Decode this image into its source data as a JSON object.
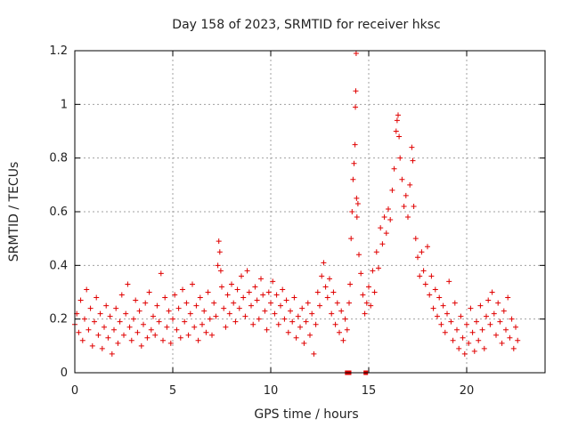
{
  "chart_data": {
    "type": "scatter",
    "title": "Day 158 of 2023, SRMTID for receiver hksc",
    "xlabel": "GPS time / hours",
    "ylabel": "SRMTID / TECUs",
    "xlim": [
      0,
      24
    ],
    "ylim": [
      0,
      1.2
    ],
    "xticks": [
      0,
      5,
      10,
      15,
      20
    ],
    "xtick_labels": [
      "0",
      "5",
      "10",
      "15",
      "20"
    ],
    "yticks": [
      0,
      0.2,
      0.4,
      0.6,
      0.8,
      1.0,
      1.2
    ],
    "ytick_labels": [
      "0",
      "0.2",
      "0.4",
      "0.6",
      "0.8",
      "1",
      "1.2"
    ],
    "grid": true,
    "marker": "+",
    "color": "#e00000",
    "data_gap_markers": [
      {
        "x": 13.9,
        "y": 0.0
      },
      {
        "x": 14.0,
        "y": 0.0
      },
      {
        "x": 14.85,
        "y": 0.0
      }
    ],
    "series": [
      {
        "name": "SRMTID",
        "points": [
          [
            0.0,
            0.18
          ],
          [
            0.1,
            0.22
          ],
          [
            0.2,
            0.15
          ],
          [
            0.3,
            0.27
          ],
          [
            0.4,
            0.12
          ],
          [
            0.5,
            0.2
          ],
          [
            0.6,
            0.31
          ],
          [
            0.7,
            0.16
          ],
          [
            0.8,
            0.24
          ],
          [
            0.9,
            0.1
          ],
          [
            1.0,
            0.19
          ],
          [
            1.1,
            0.28
          ],
          [
            1.2,
            0.14
          ],
          [
            1.3,
            0.22
          ],
          [
            1.4,
            0.09
          ],
          [
            1.5,
            0.17
          ],
          [
            1.6,
            0.25
          ],
          [
            1.7,
            0.13
          ],
          [
            1.8,
            0.21
          ],
          [
            1.9,
            0.07
          ],
          [
            2.0,
            0.16
          ],
          [
            2.1,
            0.24
          ],
          [
            2.2,
            0.11
          ],
          [
            2.3,
            0.19
          ],
          [
            2.4,
            0.29
          ],
          [
            2.5,
            0.14
          ],
          [
            2.6,
            0.22
          ],
          [
            2.7,
            0.33
          ],
          [
            2.8,
            0.17
          ],
          [
            2.9,
            0.12
          ],
          [
            3.0,
            0.2
          ],
          [
            3.1,
            0.27
          ],
          [
            3.2,
            0.15
          ],
          [
            3.3,
            0.23
          ],
          [
            3.4,
            0.1
          ],
          [
            3.5,
            0.18
          ],
          [
            3.6,
            0.26
          ],
          [
            3.7,
            0.13
          ],
          [
            3.8,
            0.3
          ],
          [
            3.9,
            0.16
          ],
          [
            4.0,
            0.21
          ],
          [
            4.1,
            0.14
          ],
          [
            4.2,
            0.25
          ],
          [
            4.3,
            0.19
          ],
          [
            4.4,
            0.37
          ],
          [
            4.5,
            0.12
          ],
          [
            4.6,
            0.28
          ],
          [
            4.7,
            0.17
          ],
          [
            4.8,
            0.23
          ],
          [
            4.9,
            0.11
          ],
          [
            5.0,
            0.2
          ],
          [
            5.1,
            0.29
          ],
          [
            5.2,
            0.16
          ],
          [
            5.3,
            0.24
          ],
          [
            5.4,
            0.13
          ],
          [
            5.5,
            0.31
          ],
          [
            5.6,
            0.19
          ],
          [
            5.7,
            0.26
          ],
          [
            5.8,
            0.14
          ],
          [
            5.9,
            0.22
          ],
          [
            6.0,
            0.33
          ],
          [
            6.1,
            0.17
          ],
          [
            6.2,
            0.25
          ],
          [
            6.3,
            0.12
          ],
          [
            6.4,
            0.28
          ],
          [
            6.5,
            0.18
          ],
          [
            6.6,
            0.23
          ],
          [
            6.7,
            0.15
          ],
          [
            6.8,
            0.3
          ],
          [
            6.9,
            0.2
          ],
          [
            7.0,
            0.14
          ],
          [
            7.1,
            0.26
          ],
          [
            7.2,
            0.21
          ],
          [
            7.3,
            0.4
          ],
          [
            7.35,
            0.49
          ],
          [
            7.4,
            0.45
          ],
          [
            7.45,
            0.38
          ],
          [
            7.5,
            0.32
          ],
          [
            7.6,
            0.24
          ],
          [
            7.7,
            0.17
          ],
          [
            7.8,
            0.29
          ],
          [
            7.9,
            0.22
          ],
          [
            8.0,
            0.33
          ],
          [
            8.1,
            0.26
          ],
          [
            8.2,
            0.19
          ],
          [
            8.3,
            0.31
          ],
          [
            8.4,
            0.24
          ],
          [
            8.5,
            0.36
          ],
          [
            8.6,
            0.28
          ],
          [
            8.7,
            0.21
          ],
          [
            8.8,
            0.38
          ],
          [
            8.9,
            0.3
          ],
          [
            9.0,
            0.25
          ],
          [
            9.1,
            0.18
          ],
          [
            9.2,
            0.32
          ],
          [
            9.3,
            0.27
          ],
          [
            9.4,
            0.2
          ],
          [
            9.5,
            0.35
          ],
          [
            9.6,
            0.29
          ],
          [
            9.7,
            0.23
          ],
          [
            9.8,
            0.16
          ],
          [
            9.9,
            0.3
          ],
          [
            10.0,
            0.26
          ],
          [
            10.1,
            0.34
          ],
          [
            10.2,
            0.22
          ],
          [
            10.3,
            0.29
          ],
          [
            10.4,
            0.18
          ],
          [
            10.5,
            0.25
          ],
          [
            10.6,
            0.31
          ],
          [
            10.7,
            0.2
          ],
          [
            10.8,
            0.27
          ],
          [
            10.9,
            0.15
          ],
          [
            11.0,
            0.23
          ],
          [
            11.1,
            0.19
          ],
          [
            11.2,
            0.28
          ],
          [
            11.3,
            0.13
          ],
          [
            11.4,
            0.21
          ],
          [
            11.5,
            0.17
          ],
          [
            11.6,
            0.24
          ],
          [
            11.7,
            0.11
          ],
          [
            11.8,
            0.19
          ],
          [
            11.9,
            0.26
          ],
          [
            12.0,
            0.14
          ],
          [
            12.1,
            0.22
          ],
          [
            12.2,
            0.07
          ],
          [
            12.3,
            0.18
          ],
          [
            12.4,
            0.3
          ],
          [
            12.5,
            0.25
          ],
          [
            12.6,
            0.36
          ],
          [
            12.7,
            0.41
          ],
          [
            12.8,
            0.32
          ],
          [
            12.9,
            0.28
          ],
          [
            13.0,
            0.35
          ],
          [
            13.1,
            0.22
          ],
          [
            13.2,
            0.3
          ],
          [
            13.3,
            0.18
          ],
          [
            13.4,
            0.26
          ],
          [
            13.5,
            0.15
          ],
          [
            13.6,
            0.23
          ],
          [
            13.7,
            0.12
          ],
          [
            13.8,
            0.2
          ],
          [
            13.9,
            0.16
          ],
          [
            14.0,
            0.26
          ],
          [
            14.05,
            0.33
          ],
          [
            14.1,
            0.5
          ],
          [
            14.15,
            0.6
          ],
          [
            14.2,
            0.72
          ],
          [
            14.25,
            0.78
          ],
          [
            14.3,
            0.85
          ],
          [
            14.32,
            0.99
          ],
          [
            14.34,
            1.05
          ],
          [
            14.36,
            1.19
          ],
          [
            14.38,
            0.65
          ],
          [
            14.4,
            0.58
          ],
          [
            14.45,
            0.63
          ],
          [
            14.5,
            0.44
          ],
          [
            14.6,
            0.37
          ],
          [
            14.7,
            0.29
          ],
          [
            14.8,
            0.22
          ],
          [
            14.9,
            0.26
          ],
          [
            15.0,
            0.32
          ],
          [
            15.1,
            0.25
          ],
          [
            15.2,
            0.38
          ],
          [
            15.3,
            0.3
          ],
          [
            15.4,
            0.45
          ],
          [
            15.5,
            0.39
          ],
          [
            15.6,
            0.54
          ],
          [
            15.7,
            0.48
          ],
          [
            15.8,
            0.58
          ],
          [
            15.9,
            0.52
          ],
          [
            16.0,
            0.61
          ],
          [
            16.1,
            0.57
          ],
          [
            16.2,
            0.68
          ],
          [
            16.3,
            0.76
          ],
          [
            16.4,
            0.9
          ],
          [
            16.45,
            0.94
          ],
          [
            16.5,
            0.96
          ],
          [
            16.55,
            0.88
          ],
          [
            16.6,
            0.8
          ],
          [
            16.7,
            0.72
          ],
          [
            16.8,
            0.62
          ],
          [
            16.9,
            0.66
          ],
          [
            17.0,
            0.58
          ],
          [
            17.1,
            0.7
          ],
          [
            17.2,
            0.84
          ],
          [
            17.25,
            0.79
          ],
          [
            17.3,
            0.62
          ],
          [
            17.4,
            0.5
          ],
          [
            17.5,
            0.43
          ],
          [
            17.6,
            0.36
          ],
          [
            17.7,
            0.45
          ],
          [
            17.8,
            0.38
          ],
          [
            17.9,
            0.33
          ],
          [
            18.0,
            0.47
          ],
          [
            18.1,
            0.29
          ],
          [
            18.2,
            0.36
          ],
          [
            18.3,
            0.24
          ],
          [
            18.4,
            0.31
          ],
          [
            18.5,
            0.21
          ],
          [
            18.6,
            0.28
          ],
          [
            18.7,
            0.18
          ],
          [
            18.8,
            0.25
          ],
          [
            18.9,
            0.15
          ],
          [
            19.0,
            0.22
          ],
          [
            19.1,
            0.34
          ],
          [
            19.2,
            0.19
          ],
          [
            19.3,
            0.12
          ],
          [
            19.4,
            0.26
          ],
          [
            19.5,
            0.16
          ],
          [
            19.6,
            0.09
          ],
          [
            19.7,
            0.21
          ],
          [
            19.8,
            0.13
          ],
          [
            19.9,
            0.07
          ],
          [
            20.0,
            0.18
          ],
          [
            20.1,
            0.11
          ],
          [
            20.2,
            0.24
          ],
          [
            20.3,
            0.15
          ],
          [
            20.4,
            0.08
          ],
          [
            20.5,
            0.19
          ],
          [
            20.6,
            0.12
          ],
          [
            20.7,
            0.25
          ],
          [
            20.8,
            0.16
          ],
          [
            20.9,
            0.09
          ],
          [
            21.0,
            0.21
          ],
          [
            21.1,
            0.27
          ],
          [
            21.2,
            0.18
          ],
          [
            21.3,
            0.3
          ],
          [
            21.4,
            0.22
          ],
          [
            21.5,
            0.14
          ],
          [
            21.6,
            0.26
          ],
          [
            21.7,
            0.19
          ],
          [
            21.8,
            0.11
          ],
          [
            21.9,
            0.23
          ],
          [
            22.0,
            0.16
          ],
          [
            22.1,
            0.28
          ],
          [
            22.2,
            0.13
          ],
          [
            22.3,
            0.2
          ],
          [
            22.4,
            0.09
          ],
          [
            22.5,
            0.17
          ],
          [
            22.6,
            0.12
          ]
        ]
      }
    ]
  }
}
